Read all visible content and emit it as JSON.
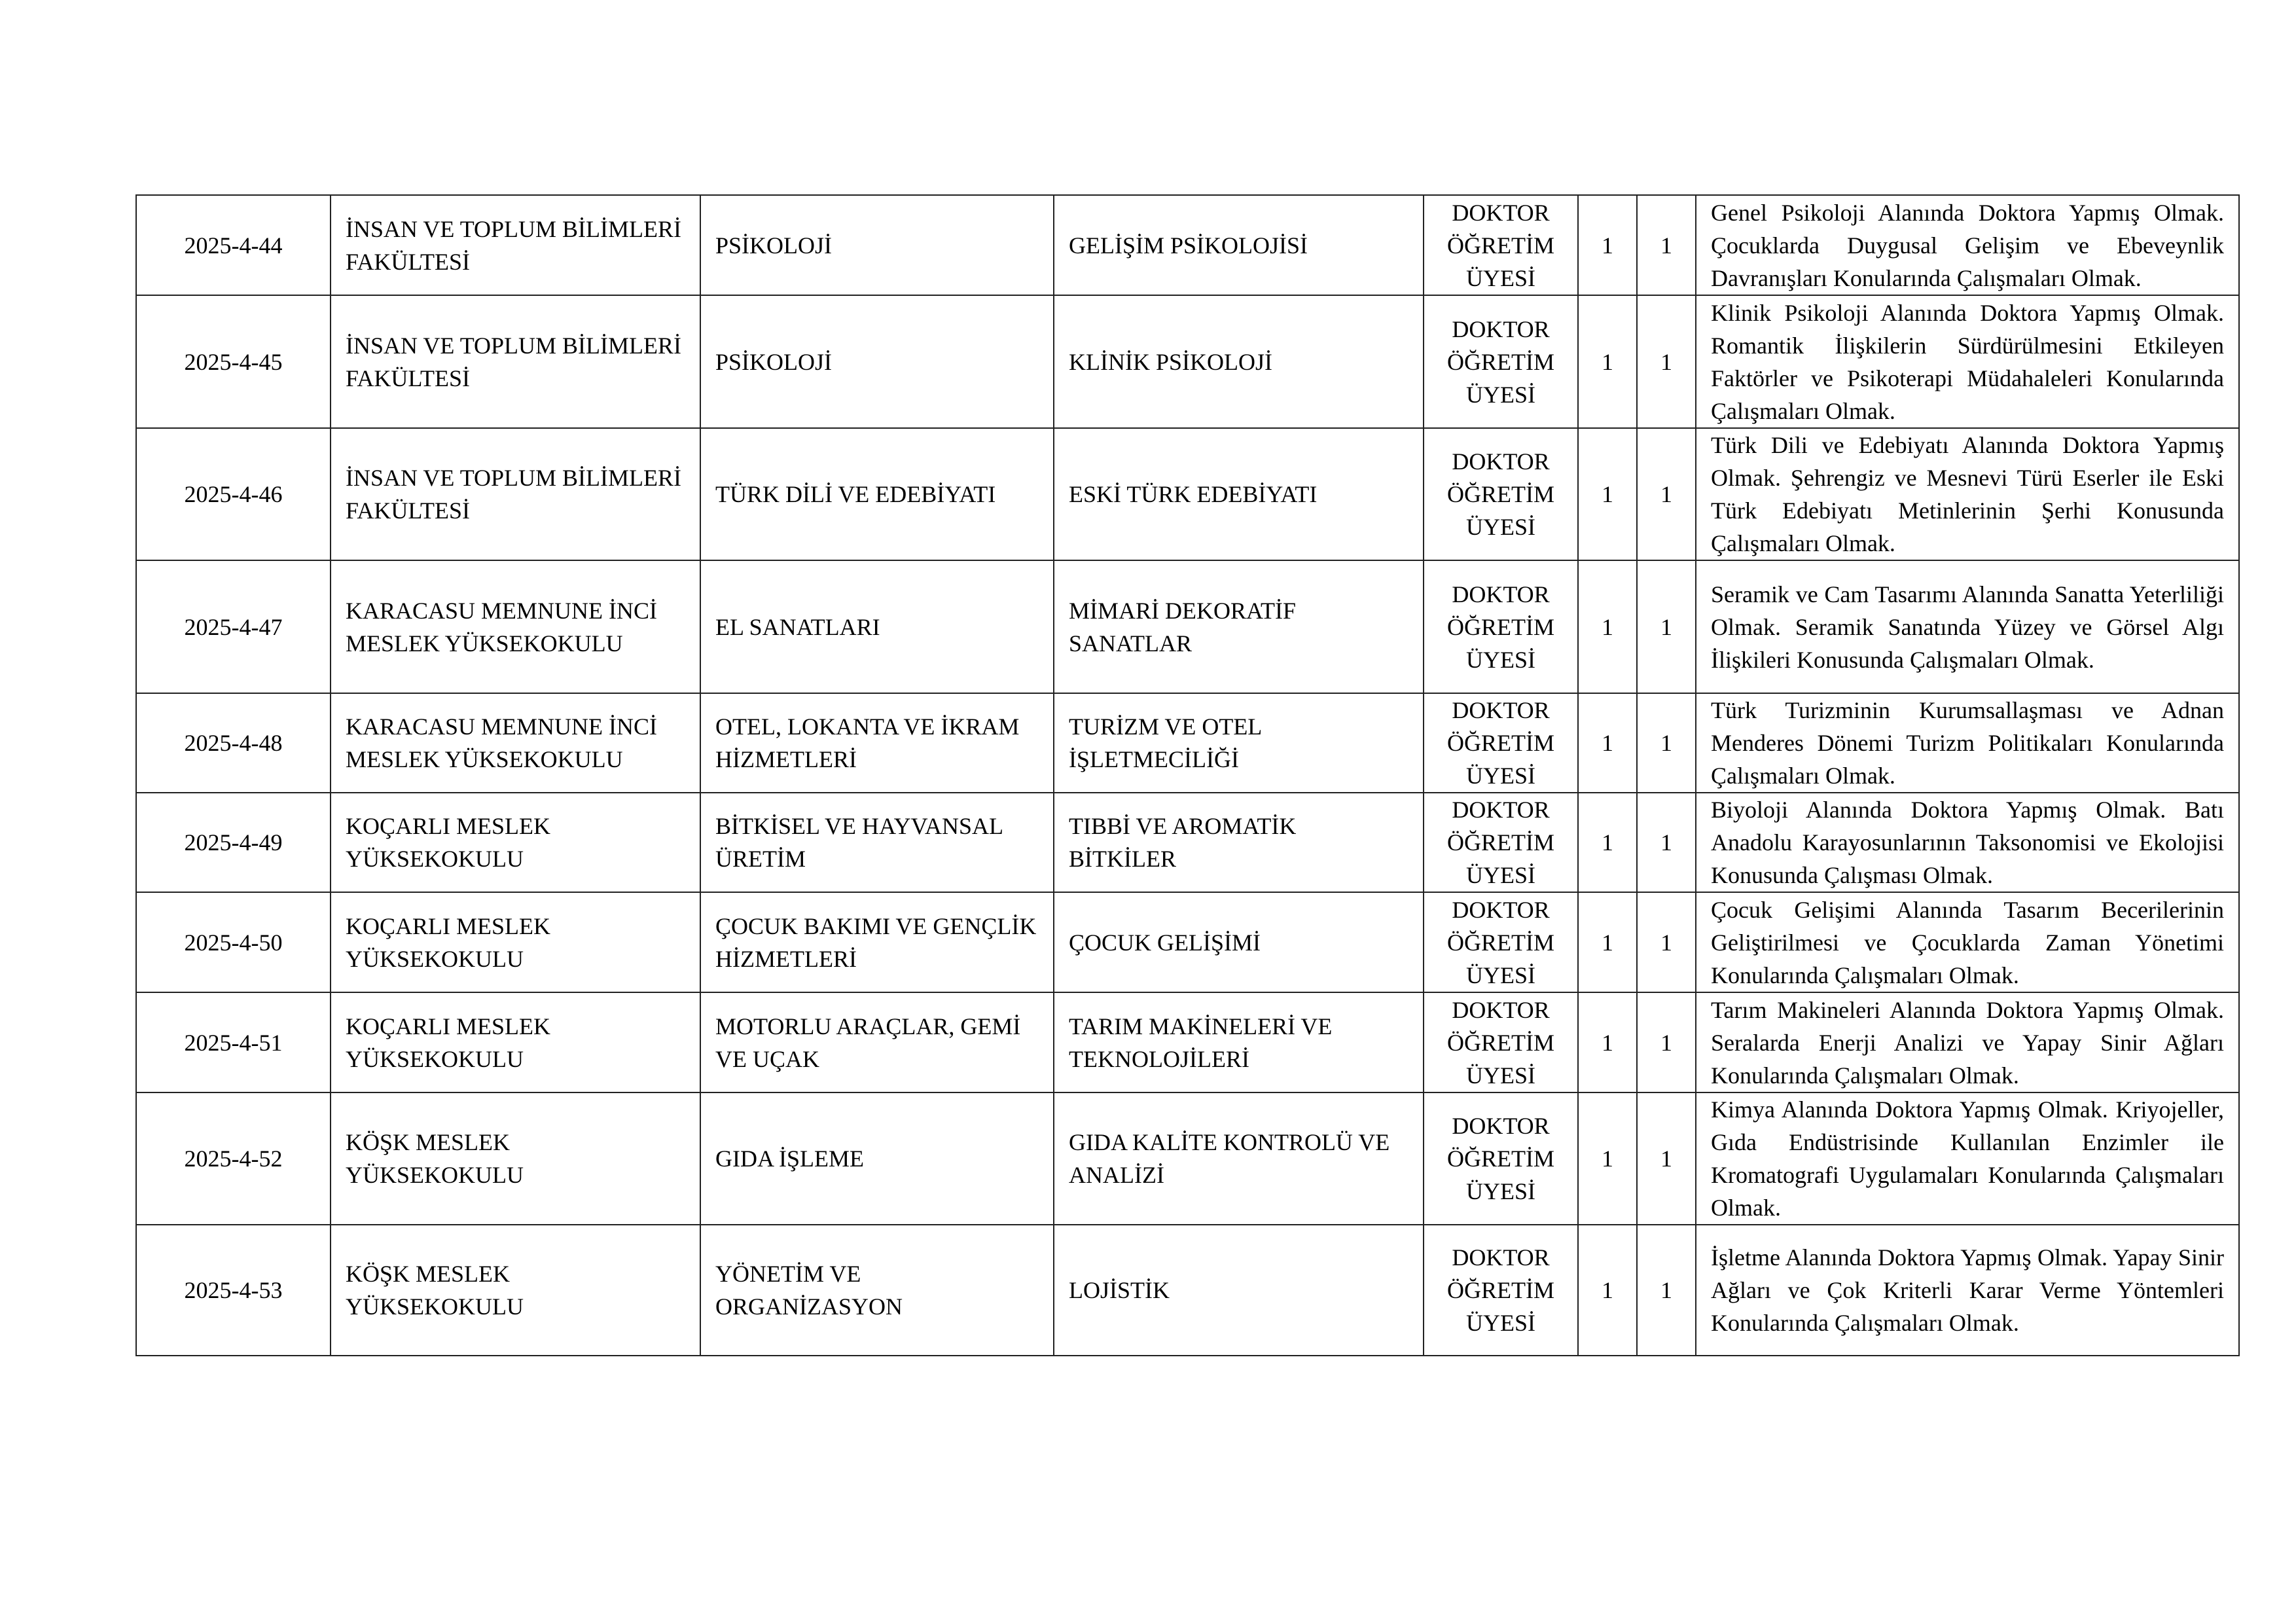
{
  "rows": [
    {
      "code": "2025-4-44",
      "unit": "İNSAN VE TOPLUM BİLİMLERİ FAKÜLTESİ",
      "department": "PSİKOLOJİ",
      "field": "GELİŞİM PSİKOLOJİSİ",
      "title": "DOKTOR ÖĞRETİM ÜYESİ",
      "count_a": "1",
      "count_b": "1",
      "requirement": "Genel Psikoloji Alanında Doktora Yapmış Olmak. Çocuklarda Duygusal Gelişim ve Ebeveynlik Davranışları Konularında Çalışmaları Olmak."
    },
    {
      "code": "2025-4-45",
      "unit": "İNSAN VE TOPLUM BİLİMLERİ FAKÜLTESİ",
      "department": "PSİKOLOJİ",
      "field": "KLİNİK PSİKOLOJİ",
      "title": "DOKTOR ÖĞRETİM ÜYESİ",
      "count_a": "1",
      "count_b": "1",
      "requirement": "Klinik Psikoloji Alanında Doktora Yapmış Olmak. Romantik İlişkilerin Sürdürülmesini Etkileyen Faktörler ve Psikoterapi Müdahaleleri Konularında Çalışmaları Olmak."
    },
    {
      "code": "2025-4-46",
      "unit": "İNSAN VE TOPLUM BİLİMLERİ FAKÜLTESİ",
      "department": "TÜRK DİLİ VE EDEBİYATI",
      "field": "ESKİ TÜRK EDEBİYATI",
      "title": "DOKTOR ÖĞRETİM ÜYESİ",
      "count_a": "1",
      "count_b": "1",
      "requirement": "Türk Dili ve Edebiyatı Alanında Doktora Yapmış Olmak. Şehrengiz ve Mesnevi Türü Eserler ile Eski Türk Edebiyatı Metinlerinin Şerhi Konusunda Çalışmaları Olmak."
    },
    {
      "code": "2025-4-47",
      "unit": "KARACASU MEMNUNE İNCİ MESLEK YÜKSEKOKULU",
      "department": "EL SANATLARI",
      "field": "MİMARİ DEKORATİF SANATLAR",
      "title": "DOKTOR ÖĞRETİM ÜYESİ",
      "count_a": "1",
      "count_b": "1",
      "requirement": "Seramik ve Cam Tasarımı Alanında Sanatta Yeterliliği Olmak. Seramik Sanatında Yüzey ve Görsel Algı İlişkileri Konusunda Çalışmaları Olmak."
    },
    {
      "code": "2025-4-48",
      "unit": "KARACASU MEMNUNE İNCİ MESLEK YÜKSEKOKULU",
      "department": "OTEL, LOKANTA VE İKRAM HİZMETLERİ",
      "field": "TURİZM VE OTEL İŞLETMECİLİĞİ",
      "title": "DOKTOR ÖĞRETİM ÜYESİ",
      "count_a": "1",
      "count_b": "1",
      "requirement": "Türk Turizminin Kurumsallaşması ve Adnan Menderes Dönemi Turizm Politikaları Konularında Çalışmaları Olmak."
    },
    {
      "code": "2025-4-49",
      "unit": "KOÇARLI MESLEK YÜKSEKOKULU",
      "department": "BİTKİSEL VE HAYVANSAL ÜRETİM",
      "field": "TIBBİ VE AROMATİK BİTKİLER",
      "title": "DOKTOR ÖĞRETİM ÜYESİ",
      "count_a": "1",
      "count_b": "1",
      "requirement": "Biyoloji Alanında Doktora Yapmış Olmak. Batı Anadolu Karayosunlarının Taksonomisi ve Ekolojisi Konusunda Çalışması Olmak."
    },
    {
      "code": "2025-4-50",
      "unit": "KOÇARLI MESLEK YÜKSEKOKULU",
      "department": "ÇOCUK BAKIMI VE GENÇLİK HİZMETLERİ",
      "field": "ÇOCUK GELİŞİMİ",
      "title": "DOKTOR ÖĞRETİM ÜYESİ",
      "count_a": "1",
      "count_b": "1",
      "requirement": "Çocuk Gelişimi Alanında Tasarım Becerilerinin Geliştirilmesi ve Çocuklarda Zaman Yönetimi Konularında Çalışmaları Olmak."
    },
    {
      "code": "2025-4-51",
      "unit": "KOÇARLI MESLEK YÜKSEKOKULU",
      "department": "MOTORLU ARAÇLAR, GEMİ VE UÇAK",
      "field": "TARIM MAKİNELERİ VE TEKNOLOJİLERİ",
      "title": "DOKTOR ÖĞRETİM ÜYESİ",
      "count_a": "1",
      "count_b": "1",
      "requirement": "Tarım Makineleri Alanında Doktora Yapmış Olmak. Seralarda Enerji Analizi ve Yapay Sinir Ağları Konularında Çalışmaları Olmak."
    },
    {
      "code": "2025-4-52",
      "unit": "KÖŞK MESLEK YÜKSEKOKULU",
      "department": "GIDA İŞLEME",
      "field": "GIDA KALİTE KONTROLÜ VE ANALİZİ",
      "title": "DOKTOR ÖĞRETİM ÜYESİ",
      "count_a": "1",
      "count_b": "1",
      "requirement": "Kimya Alanında Doktora Yapmış Olmak. Kriyojeller, Gıda Endüstrisinde Kullanılan Enzimler ile Kromatografi Uygulamaları Konularında Çalışmaları Olmak."
    },
    {
      "code": "2025-4-53",
      "unit": "KÖŞK MESLEK YÜKSEKOKULU",
      "department": "YÖNETİM VE ORGANİZASYON",
      "field": "LOJİSTİK",
      "title": "DOKTOR ÖĞRETİM ÜYESİ",
      "count_a": "1",
      "count_b": "1",
      "requirement": "İşletme Alanında Doktora Yapmış Olmak. Yapay Sinir Ağları ve Çok Kriterli Karar Verme Yöntemleri Konularında Çalışmaları Olmak."
    }
  ]
}
